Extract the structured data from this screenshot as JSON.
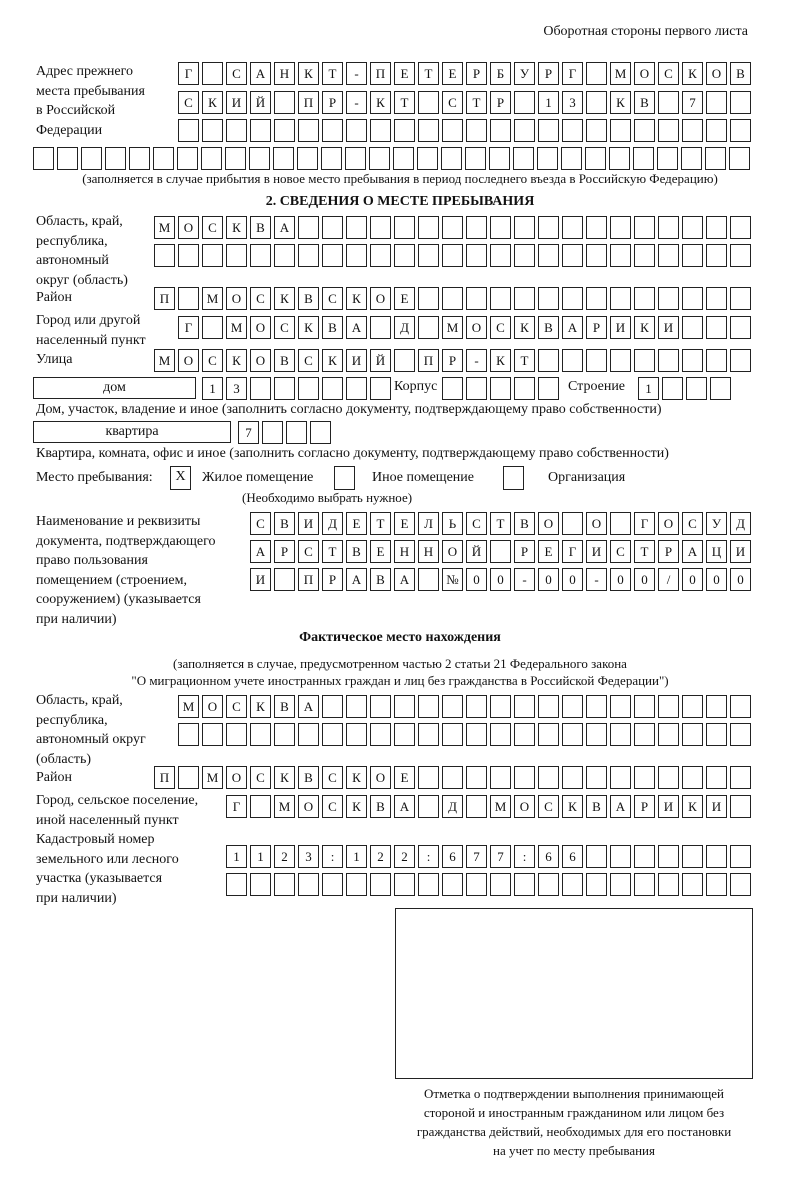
{
  "header": "Оборотная стороны первого листа",
  "prev_address": {
    "label": "Адрес прежнего\nместа пребывания\nв Российской\nФедерации",
    "rows": [
      "Г САНКТ-ПЕТЕРБУРГ МОСКОВ",
      "СКИЙ ПР-КТ СТР 13 КВ 7",
      "",
      ""
    ],
    "note": "(заполняется в случае прибытия в новое место пребывания в период последнего въезда в Российскую Федерацию)"
  },
  "section2": {
    "title": "2. СВЕДЕНИЯ О МЕСТЕ ПРЕБЫВАНИЯ",
    "region_label": "Область, край,\nреспублика,\nавтономный\nокруг (область)",
    "region_rows": [
      "МОСКВА",
      ""
    ],
    "district_label": "Район",
    "district": "П МОСКВСКОЕ",
    "city_label": "Город или другой\nнаселенный пункт",
    "city": "Г МОСКВА Д МОСКВАРИКИ",
    "street_label": "Улица",
    "street": "МОСКОВСКИЙ ПР-КТ",
    "house_type": "дом",
    "house_number": "13",
    "korpus_label": "Корпус",
    "korpus": "",
    "building_label": "Строение",
    "building": "1",
    "house_note": "Дом, участок, владение и иное (заполнить согласно документу, подтверждающему право собственности)",
    "apt_type": "квартира",
    "apt_number": "7",
    "apt_note": "Квартира, комната, офис и иное (заполнить согласно документу, подтверждающему право собственности)",
    "stay_place_label": "Место пребывания:",
    "options": [
      {
        "label": "Жилое помещение",
        "mark": "Х"
      },
      {
        "label": "Иное помещение",
        "mark": ""
      },
      {
        "label": "Организация",
        "mark": ""
      }
    ],
    "choose_note": "(Необходимо выбрать нужное)",
    "doc_label": "Наименование и реквизиты\nдокумента, подтверждающего\nправо пользования\nпомещением (строением,\nсооружением) (указывается\nпри наличии)",
    "doc_rows": [
      "СВИДЕТЕЛЬСТВО О ГОСУД",
      "АРСТВЕННОЙ РЕГИСТРАЦИ",
      "И ПРАВА №00-00-00/000"
    ]
  },
  "actual": {
    "title": "Фактическое место нахождения",
    "note1": "(заполняется в случае, предусмотренном частью 2 статьи 21 Федерального закона",
    "note2": "\"О миграционном учете иностранных граждан и лиц без гражданства в Российской Федерации\")",
    "region_label": "Область, край,\nреспублика,\nавтономный округ\n(область)",
    "region_rows": [
      "МОСКВА",
      ""
    ],
    "district_label": "Район",
    "district": "П МОСКВСКОЕ",
    "city_label": "Город, сельское поселение,\nиной населенный пункт",
    "city": "Г МОСКВА Д МОСКВАРИКИ",
    "cadastral_label": "Кадастровый номер\nземельного или лесного\nучастка (указывается\nпри наличии)",
    "cadastral_rows": [
      "1123:122:677:66",
      ""
    ]
  },
  "confirmation_caption": "Отметка о подтверждении выполнения принимающей\nстороной и иностранным гражданином или лицом без\nгражданства действий, необходимых для его постановки\nна учет по месту пребывания"
}
